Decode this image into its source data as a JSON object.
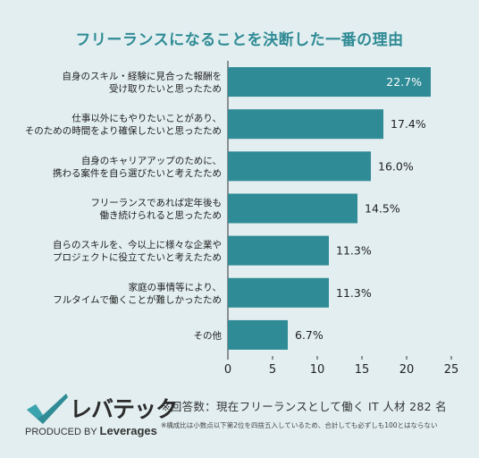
{
  "chart_data": {
    "type": "bar",
    "orientation": "horizontal",
    "title": "フリーランスになることを決断した一番の理由",
    "categories": [
      [
        "自身のスキル・経験に見合った報酬を",
        "受け取りたいと思ったため"
      ],
      [
        "仕事以外にもやりたいことがあり、",
        "そのための時間をより確保したいと思ったため"
      ],
      [
        "自身のキャリアアップのために、",
        "携わる案件を自ら選びたいと考えたため"
      ],
      [
        "フリーランスであれば定年後も",
        "働き続けられると思ったため"
      ],
      [
        "自らのスキルを、今以上に様々な企業や",
        "プロジェクトに役立てたいと考えたため"
      ],
      [
        "家庭の事情等により、",
        "フルタイムで働くことが難しかったため"
      ],
      [
        "その他"
      ]
    ],
    "values": [
      22.7,
      17.4,
      16.0,
      14.5,
      11.3,
      11.3,
      6.7
    ],
    "value_labels": [
      "22.7%",
      "17.4%",
      "16.0%",
      "14.5%",
      "11.3%",
      "11.3%",
      "6.7%"
    ],
    "xlim": [
      0,
      25
    ],
    "xticks": [
      0,
      5,
      10,
      15,
      20,
      25
    ],
    "bar_color": "#2f8b95",
    "grid": false
  },
  "footer": {
    "logo_name": "レバテック",
    "logo_sub_prefix": "PRODUCED BY",
    "logo_sub_brand": "Leverages",
    "note": "※回答数：現在フリーランスとして働く IT 人材 282 名",
    "note_small": "※構成比は小数点以下第2位を四捨五入しているため、合計しても必ずしも100とはならない"
  },
  "colors": {
    "background": "#e2eef0",
    "accent": "#2f8b95"
  }
}
